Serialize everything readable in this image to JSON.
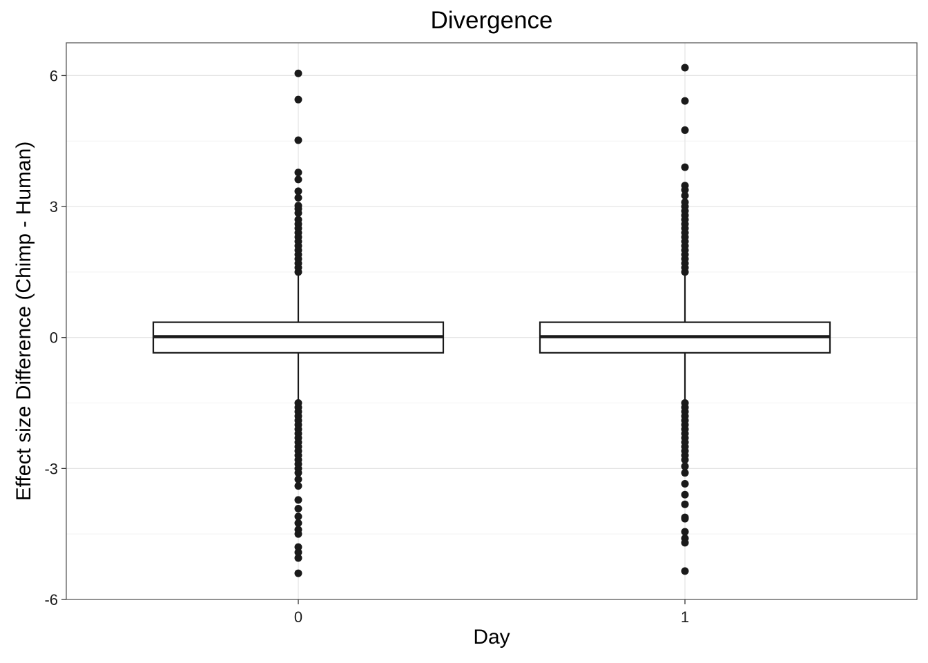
{
  "chart_data": {
    "type": "boxplot",
    "title": "Divergence",
    "xlabel": "Day",
    "ylabel": "Effect size Difference (Chimp - Human)",
    "categories": [
      "0",
      "1"
    ],
    "ylim": [
      -6,
      6.75
    ],
    "yticks": [
      -6,
      -3,
      0,
      3,
      6
    ],
    "ytick_labels": [
      "-6",
      "-3",
      "0",
      "3",
      "6"
    ],
    "grid": true,
    "boxes": [
      {
        "category": "0",
        "q1": -0.35,
        "median": 0.02,
        "q3": 0.35,
        "whisker_low": -1.42,
        "whisker_high": 1.42,
        "outliers": [
          6.05,
          5.45,
          4.52,
          3.78,
          3.62,
          3.35,
          3.2,
          3.02,
          2.95,
          2.85,
          2.7,
          2.6,
          2.5,
          2.4,
          2.3,
          2.2,
          2.1,
          2.0,
          1.9,
          1.8,
          1.7,
          1.6,
          1.5,
          -1.5,
          -1.6,
          -1.7,
          -1.8,
          -1.9,
          -2.0,
          -2.1,
          -2.2,
          -2.3,
          -2.4,
          -2.5,
          -2.6,
          -2.7,
          -2.8,
          -2.9,
          -3.0,
          -3.1,
          -3.25,
          -3.4,
          -3.72,
          -3.92,
          -4.1,
          -4.25,
          -4.4,
          -4.5,
          -4.8,
          -4.92,
          -5.05,
          -5.4
        ]
      },
      {
        "category": "1",
        "q1": -0.35,
        "median": 0.02,
        "q3": 0.35,
        "whisker_low": -1.42,
        "whisker_high": 1.42,
        "outliers": [
          6.18,
          5.42,
          4.75,
          3.9,
          3.48,
          3.38,
          3.25,
          3.1,
          3.0,
          2.9,
          2.8,
          2.7,
          2.6,
          2.5,
          2.4,
          2.3,
          2.2,
          2.1,
          2.0,
          1.9,
          1.8,
          1.7,
          1.6,
          1.5,
          -1.5,
          -1.6,
          -1.7,
          -1.8,
          -1.9,
          -2.0,
          -2.1,
          -2.2,
          -2.3,
          -2.4,
          -2.5,
          -2.6,
          -2.7,
          -2.8,
          -2.95,
          -3.1,
          -3.35,
          -3.6,
          -3.82,
          -4.12,
          -4.15,
          -4.45,
          -4.6,
          -4.7,
          -5.35
        ]
      }
    ]
  }
}
